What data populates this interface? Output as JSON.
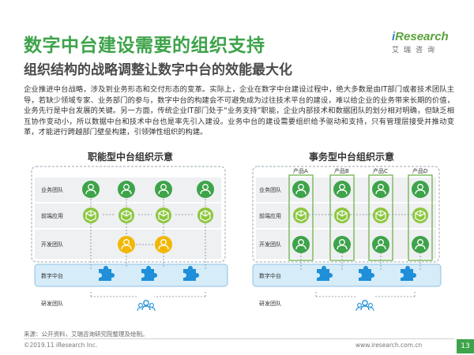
{
  "header": {
    "title": "数字中台建设需要的组织支持",
    "subtitle": "组织结构的战略调整让数字中台的效能最大化",
    "logo_brand_prefix": "i",
    "logo_brand_rest": "Research",
    "logo_cn": "艾瑞咨询"
  },
  "body": {
    "paragraph": "企业推进中台战略，涉及到业务形态和交付形态的变革。实际上，企业在数字中台建设过程中，绝大多数是由IT部门或者技术团队主导，若缺少领域专家、业务部门的参与，数字中台的构建会不可避免成为过往技术平台的建设，难以给企业的业务带来长期的价值，业务先行是中台发展的关键。另一方面，传统企业IT部门处于“业务支持”职能，企业内部技术和数据团队的划分相对明确，但缺乏相互协作变动小，所以数据中台和技术中台也是率先引入建设。业务中台的建设需要组织给予驱动和支持，只有管理层接受并推动变革，才能进行跨越部门壁垒构建，引领弹性组织的构建。"
  },
  "diagrams": {
    "left": {
      "title": "职能型中台组织示意",
      "rows": [
        "业务团队",
        "前端应用",
        "开发团队",
        "数字中台",
        "研发团队"
      ]
    },
    "right": {
      "title": "事务型中台组织示意",
      "rows": [
        "业务团队",
        "前端应用",
        "开发团队",
        "数字中台",
        "研发团队"
      ],
      "products": [
        "产品A",
        "产品B",
        "产品C",
        "产品D"
      ]
    }
  },
  "colors": {
    "green": "#3ea34a",
    "light_green": "#8cc63f",
    "yellow": "#f2b705",
    "blue": "#1e8fd8",
    "panel_blue": "#d6ecf8",
    "band": "#eef0f2"
  },
  "footer": {
    "source": "来源：公开资料，艾瑞咨询研究院整理及绘制。",
    "copyright": "©2019.11 iResearch Inc.",
    "website": "www.iresearch.com.cn",
    "page": "13"
  }
}
